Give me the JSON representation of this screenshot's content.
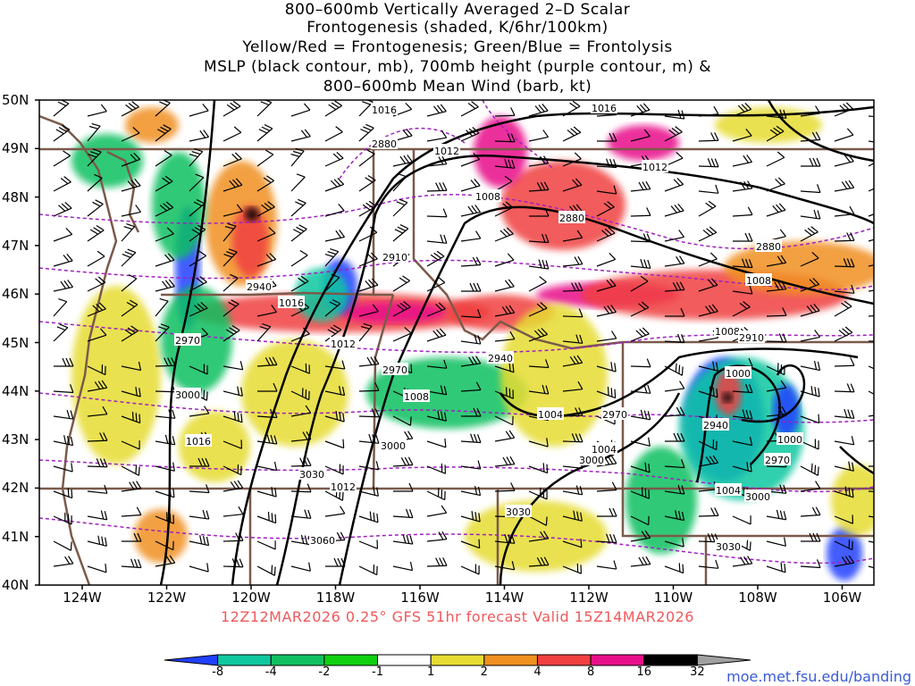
{
  "title": {
    "lines": [
      "800–600mb Vertically Averaged 2–D Scalar",
      "Frontogenesis (shaded, K/6hr/100km)",
      "Yellow/Red = Frontogenesis;  Green/Blue = Frontolysis",
      "MSLP (black contour, mb), 700mb height (purple contour, m) &",
      "800–600mb Mean Wind (barb, kt)"
    ]
  },
  "axes": {
    "lat_labels": [
      "50N",
      "49N",
      "48N",
      "47N",
      "46N",
      "45N",
      "44N",
      "43N",
      "42N",
      "41N",
      "40N"
    ],
    "lon_labels": [
      "124W",
      "122W",
      "120W",
      "118W",
      "116W",
      "114W",
      "112W",
      "110W",
      "108W",
      "106W"
    ]
  },
  "footer": "12Z12MAR2026 0.25° GFS 51hr forecast Valid 15Z14MAR2026",
  "colorbar": {
    "labels": [
      "-8",
      "-4",
      "-2",
      "-1",
      "1",
      "2",
      "4",
      "8",
      "16",
      "32"
    ],
    "colors": [
      "#2040ff",
      "#10c8a0",
      "#10c060",
      "#10d010",
      "#ffffff",
      "#e6dc32",
      "#f09020",
      "#f04040",
      "#e8108a",
      "#000000",
      "#a0a0a0"
    ]
  },
  "mslp_labels": [
    "1016",
    "1016",
    "1012",
    "1012",
    "1008",
    "1008",
    "1016",
    "1012",
    "1008",
    "1004",
    "1004",
    "1008",
    "1000",
    "1000",
    "1004",
    "1016",
    "1012"
  ],
  "height_labels": [
    "2880",
    "2880",
    "2880",
    "2910",
    "2940",
    "2970",
    "2940",
    "2970",
    "2970",
    "3000",
    "3000",
    "3030",
    "3060",
    "3000",
    "3030",
    "2940",
    "2970",
    "3030",
    "3000",
    "2910"
  ],
  "credit": "moe.met.fsu.edu/banding"
}
